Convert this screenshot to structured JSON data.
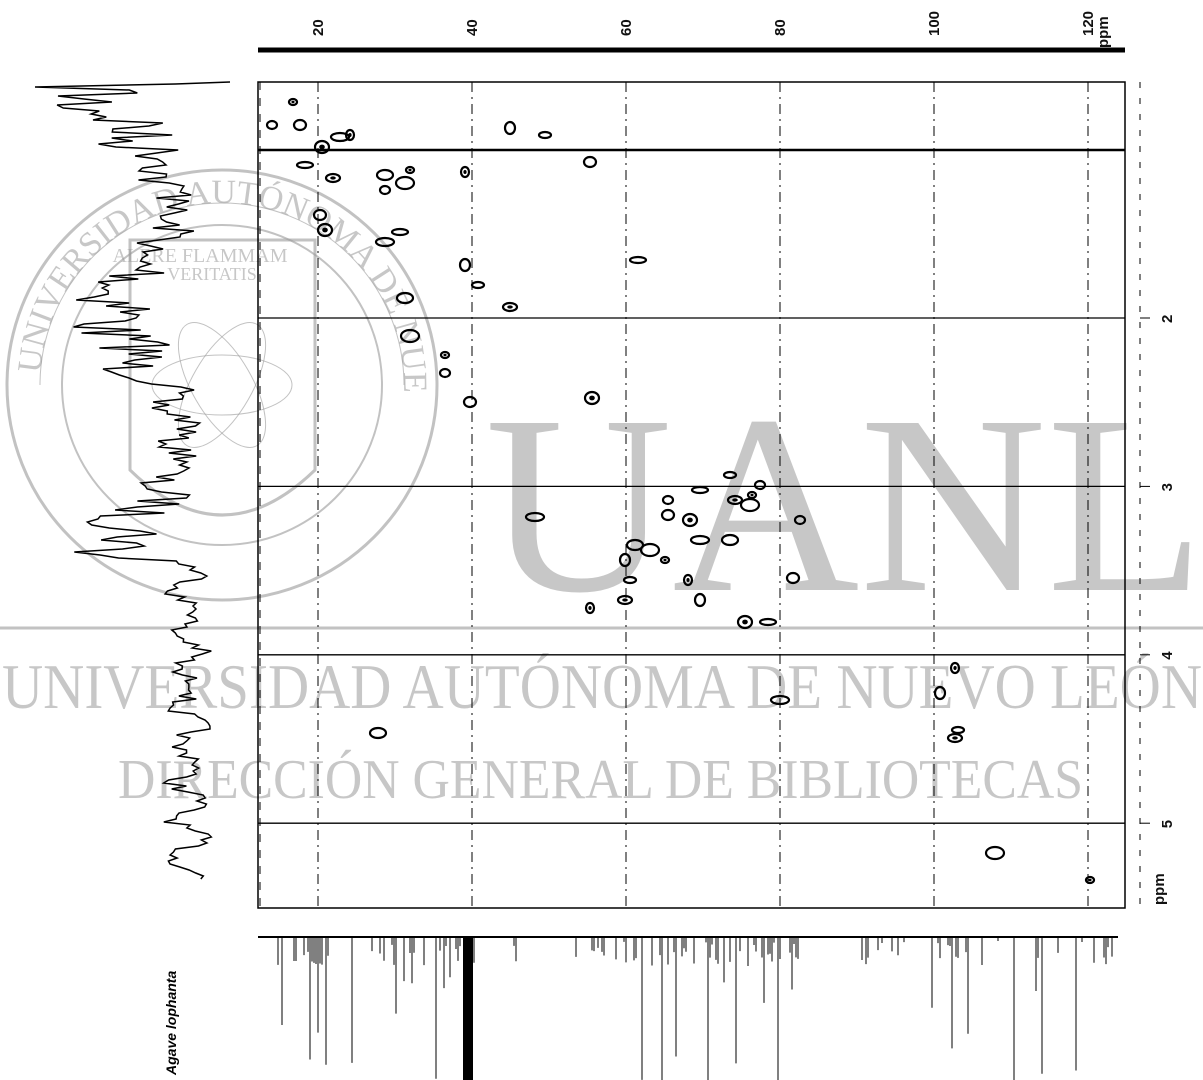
{
  "top_axis": {
    "ticks": [
      "20",
      "40",
      "60",
      "80",
      "100",
      "120"
    ],
    "unit": "ppm"
  },
  "right_axis": {
    "ticks": [
      "2",
      "3",
      "4",
      "5"
    ],
    "unit": "ppm"
  },
  "sample_label": "Agave lophanta",
  "watermark": {
    "seal_ring": "UNIVERSIDAD AUTÓNOMA DE NUEVO LEÓN",
    "seal_motto": [
      "ALERE FLAMMAM",
      "VERITATIS"
    ],
    "logo": "UANL",
    "line1": "UNIVERSIDAD AUTÓNOMA DE NUEVO LEÓN",
    "line2": "DIRECCIÓN GENERAL DE BIBLIOTECAS"
  }
}
